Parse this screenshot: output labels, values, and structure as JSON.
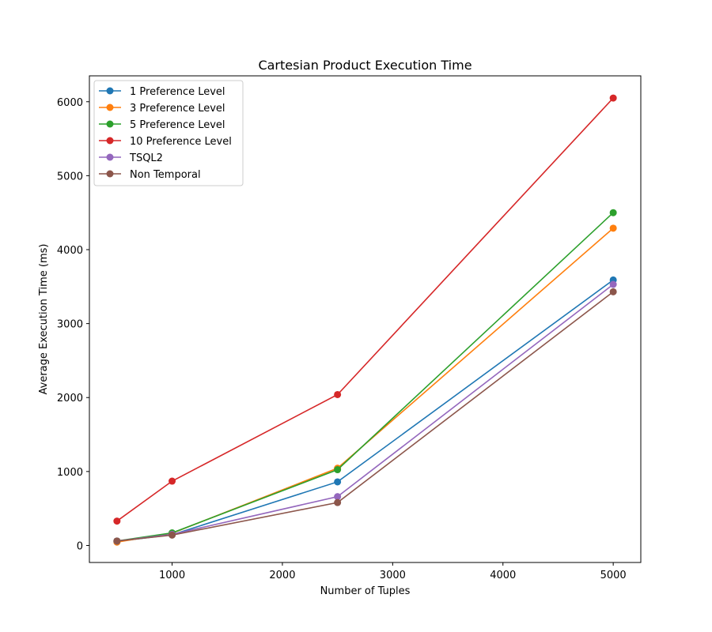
{
  "chart_data": {
    "type": "line",
    "title": "Cartesian Product Execution Time",
    "xlabel": "Number of Tuples",
    "ylabel": "Average Execution Time (ms)",
    "xlim": [
      250,
      5250
    ],
    "ylim": [
      -230,
      6350
    ],
    "xticks": [
      1000,
      2000,
      3000,
      4000,
      5000
    ],
    "yticks": [
      0,
      1000,
      2000,
      3000,
      4000,
      5000,
      6000
    ],
    "grid": false,
    "legend_position": "upper-left",
    "x": [
      500,
      1000,
      2500,
      5000
    ],
    "series": [
      {
        "name": "1 Preference Level",
        "color": "#1f77b4",
        "values": [
          55,
          145,
          860,
          3590
        ]
      },
      {
        "name": "3 Preference Level",
        "color": "#ff7f0e",
        "values": [
          45,
          165,
          1045,
          4290
        ]
      },
      {
        "name": "5 Preference Level",
        "color": "#2ca02c",
        "values": [
          60,
          170,
          1025,
          4500
        ]
      },
      {
        "name": "10 Preference Level",
        "color": "#d62728",
        "values": [
          330,
          870,
          2040,
          6050
        ]
      },
      {
        "name": "TSQL2",
        "color": "#9467bd",
        "values": [
          60,
          150,
          660,
          3530
        ]
      },
      {
        "name": "Non Temporal",
        "color": "#8c564b",
        "values": [
          60,
          140,
          580,
          3430
        ]
      }
    ]
  }
}
